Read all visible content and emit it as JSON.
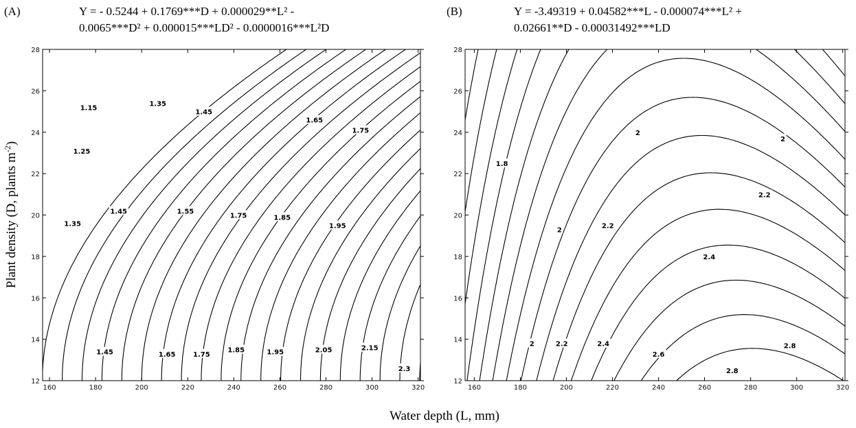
{
  "chart_data": [
    {
      "type": "contour",
      "panel_label": "(A)",
      "equation_line1": "Y = - 0.5244 + 0.1769***D + 0.000029**L² -",
      "equation_line2": "0.0065***D² + 0.000015***LD² - 0.0000016***L²D",
      "xlim": [
        157,
        321
      ],
      "ylim": [
        12,
        28
      ],
      "x_ticks": [
        "160",
        "180",
        "200",
        "220",
        "240",
        "260",
        "280",
        "300",
        "320"
      ],
      "y_ticks": [
        "12",
        "14",
        "16",
        "18",
        "20",
        "22",
        "24",
        "26",
        "28"
      ],
      "contour_labels": [
        {
          "text": "1.15",
          "x": 177,
          "y": 25.2
        },
        {
          "text": "1.25",
          "x": 174,
          "y": 23.1
        },
        {
          "text": "1.35",
          "x": 207,
          "y": 25.4
        },
        {
          "text": "1.45",
          "x": 227,
          "y": 25.0
        },
        {
          "text": "1.35",
          "x": 170,
          "y": 19.6
        },
        {
          "text": "1.45",
          "x": 190,
          "y": 20.2
        },
        {
          "text": "1.55",
          "x": 219,
          "y": 20.2
        },
        {
          "text": "1.65",
          "x": 275,
          "y": 24.6
        },
        {
          "text": "1.75",
          "x": 295,
          "y": 24.1
        },
        {
          "text": "1.75",
          "x": 242,
          "y": 20.0
        },
        {
          "text": "1.85",
          "x": 261,
          "y": 19.9
        },
        {
          "text": "1.95",
          "x": 285,
          "y": 19.5
        },
        {
          "text": "1.45",
          "x": 184,
          "y": 13.4
        },
        {
          "text": "1.65",
          "x": 211,
          "y": 13.3
        },
        {
          "text": "1.75",
          "x": 226,
          "y": 13.3
        },
        {
          "text": "1.85",
          "x": 241,
          "y": 13.5
        },
        {
          "text": "1.95",
          "x": 258,
          "y": 13.4
        },
        {
          "text": "2.05",
          "x": 279,
          "y": 13.5
        },
        {
          "text": "2.15",
          "x": 299,
          "y": 13.6
        },
        {
          "text": "2.3",
          "x": 314,
          "y": 12.6
        }
      ]
    },
    {
      "type": "contour",
      "panel_label": "(B)",
      "equation_line1": "Y = -3.49319 + 0.04582***L - 0.000074***L² +",
      "equation_line2": "0.02661**D - 0.00031492***LD",
      "xlim": [
        156,
        321
      ],
      "ylim": [
        12,
        28
      ],
      "x_ticks": [
        "160",
        "180",
        "200",
        "220",
        "240",
        "260",
        "280",
        "300",
        "320"
      ],
      "y_ticks": [
        "12",
        "14",
        "16",
        "18",
        "20",
        "22",
        "24",
        "26",
        "28"
      ],
      "contour_labels": [
        {
          "text": "1.8",
          "x": 172,
          "y": 22.5
        },
        {
          "text": "2",
          "x": 231,
          "y": 24.0
        },
        {
          "text": "2",
          "x": 294,
          "y": 23.7
        },
        {
          "text": "2.2",
          "x": 286,
          "y": 21.0
        },
        {
          "text": "2",
          "x": 197,
          "y": 19.3
        },
        {
          "text": "2.2",
          "x": 218,
          "y": 19.5
        },
        {
          "text": "2.4",
          "x": 262,
          "y": 18.0
        },
        {
          "text": "2",
          "x": 185,
          "y": 13.8
        },
        {
          "text": "2.2",
          "x": 198,
          "y": 13.8
        },
        {
          "text": "2.4",
          "x": 216,
          "y": 13.8
        },
        {
          "text": "2.6",
          "x": 240,
          "y": 13.3
        },
        {
          "text": "2.8",
          "x": 297,
          "y": 13.7
        },
        {
          "text": "2.8",
          "x": 272,
          "y": 12.5
        }
      ]
    }
  ],
  "xlabel": "Water depth (L, mm)",
  "ylabel_main": "Plant density (D, plants m",
  "ylabel_sup": "-2",
  "ylabel_close": ")"
}
